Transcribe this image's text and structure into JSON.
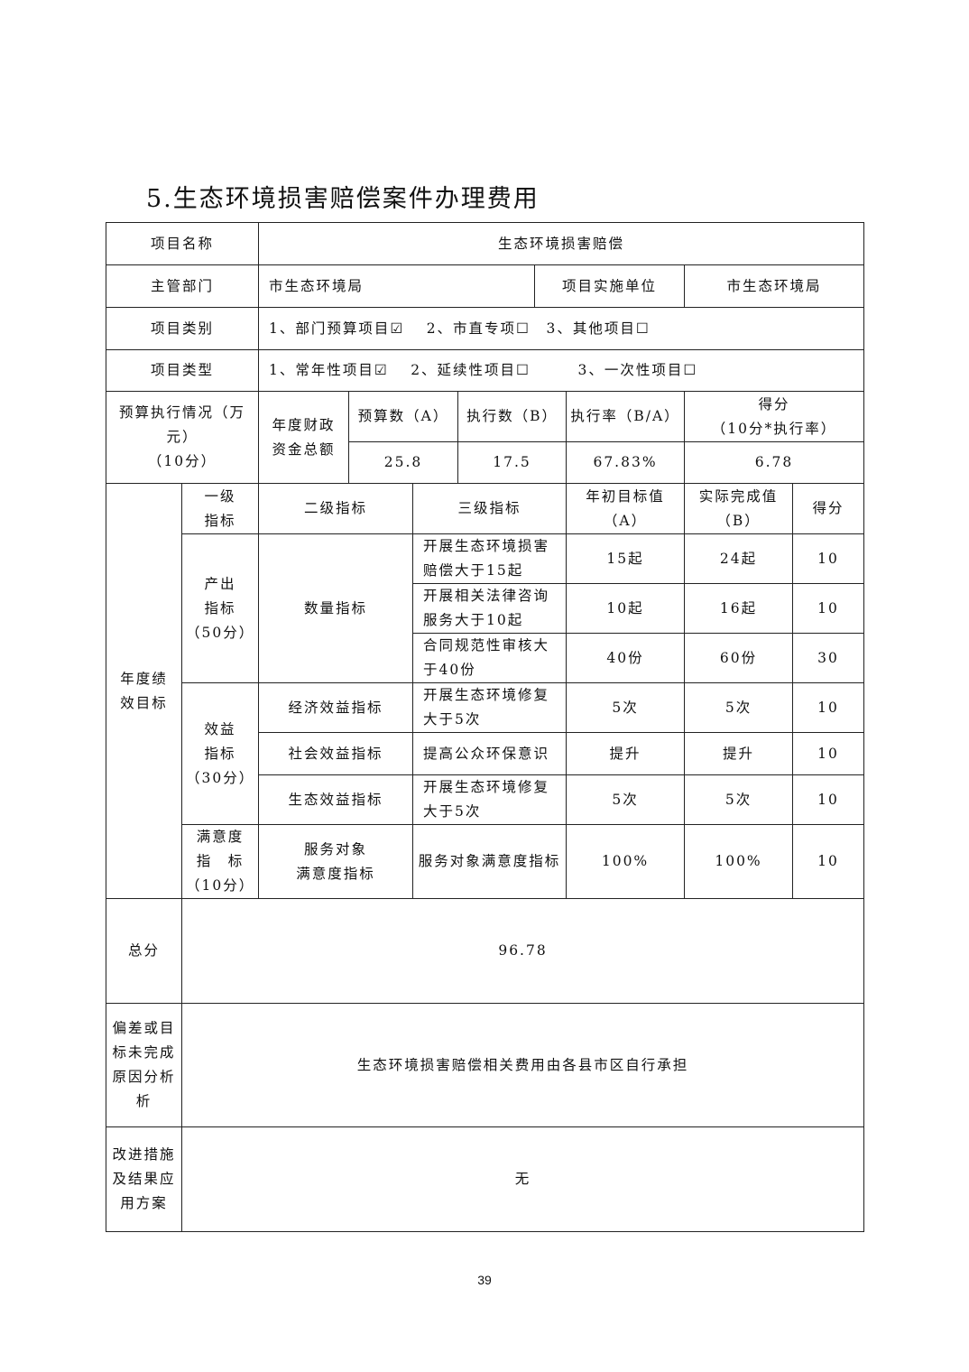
{
  "title": "5.生态环境损害赔偿案件办理费用",
  "page_number": "39",
  "project_name_label": "项目名称",
  "project_name": "生态环境损害赔偿",
  "dept_label": "主管部门",
  "dept": "市生态环境局",
  "impl_label": "项目实施单位",
  "impl": "市生态环境局",
  "category_label": "项目类别",
  "category": "1、部门预算项目☑　 2、市直专项☐　3、其他项目☐",
  "type_label": "项目类型",
  "type": "1、常年性项目☑　 2、延续性项目☐　　　3、一次性项目☐",
  "budget": {
    "label_line1": "预算执行情况（万",
    "label_line2": "元）",
    "label_line3": "（10分）",
    "total_label_1": "年度财政",
    "total_label_2": "资金总额",
    "budget_label": "预算数（A）",
    "exec_label": "执行数（B）",
    "rate_label": "执行率（B/A）",
    "score_label_1": "得分",
    "score_label_2": "（10分*执行率）",
    "budget": "25.8",
    "exec": "17.5",
    "rate": "67.83%",
    "score": "6.78"
  },
  "perf": {
    "label_1": "年度绩",
    "label_2": "效目标",
    "headers": {
      "l1_a": "一级",
      "l1_b": "指标",
      "l2": "二级指标",
      "l3": "三级指标",
      "target_a": "年初目标值",
      "target_b": "（A）",
      "actual_a": "实际完成值",
      "actual_b": "（B）",
      "score": "得分"
    },
    "output": {
      "l1_a": "产出",
      "l1_b": "指标",
      "l1_c": "（50分）",
      "l2": "数量指标"
    },
    "benefit": {
      "l1_a": "效益",
      "l1_b": "指标",
      "l1_c": "（30分）"
    },
    "satisfaction": {
      "l1_a": "满意度",
      "l1_b": "指　标",
      "l1_c": "（10分）",
      "l2_a": "服务对象",
      "l2_b": "满意度指标"
    },
    "rows": [
      {
        "l2": "",
        "l3": "开展生态环境损害赔偿大于15起",
        "target": "15起",
        "actual": "24起",
        "score": "10"
      },
      {
        "l2": "",
        "l3": "开展相关法律咨询服务大于10起",
        "target": "10起",
        "actual": "16起",
        "score": "10"
      },
      {
        "l2": "",
        "l3": "合同规范性审核大于40份",
        "target": "40份",
        "actual": "60份",
        "score": "30"
      },
      {
        "l2": "经济效益指标",
        "l3": "开展生态环境修复大于5次",
        "target": "5次",
        "actual": "5次",
        "score": "10"
      },
      {
        "l2": "社会效益指标",
        "l3": "提高公众环保意识",
        "target": "提升",
        "actual": "提升",
        "score": "10"
      },
      {
        "l2": "生态效益指标",
        "l3": "开展生态环境修复大于5次",
        "target": "5次",
        "actual": "5次",
        "score": "10"
      },
      {
        "l2": "",
        "l3": "服务对象满意度指标",
        "target": "100%",
        "actual": "100%",
        "score": "10"
      }
    ]
  },
  "total_label": "总分",
  "total": "96.78",
  "deviation_label": "偏差或目标未完成原因分析析",
  "deviation": "生态环境损害赔偿相关费用由各县市区自行承担",
  "improve_label": "改进措施及结果应用方案",
  "improve": "无"
}
